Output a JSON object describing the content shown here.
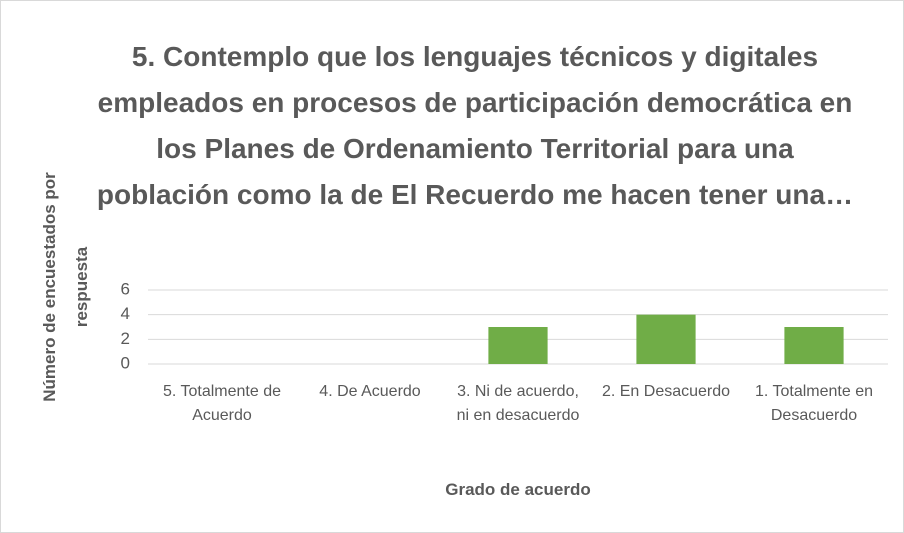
{
  "chart_data": {
    "type": "bar",
    "title": "5.  Contemplo que los lenguajes técnicos y digitales empleados en procesos de participación democrática en los Planes de Ordenamiento Territorial para una población como la de El Recuerdo me hacen tener una…",
    "xlabel": "Grado de acuerdo",
    "ylabel": "Número de encuestados por respuesta",
    "categories": [
      "5. Totalmente de Acuerdo",
      "4. De Acuerdo",
      "3. Ni de acuerdo, ni en desacuerdo",
      "2. En Desacuerdo",
      "1. Totalmente en Desacuerdo"
    ],
    "values": [
      0,
      0,
      3,
      4,
      3
    ],
    "color": "#70ad47",
    "ylim": [
      0,
      6
    ],
    "yticks": [
      0,
      2,
      4,
      6
    ],
    "grid": true
  }
}
